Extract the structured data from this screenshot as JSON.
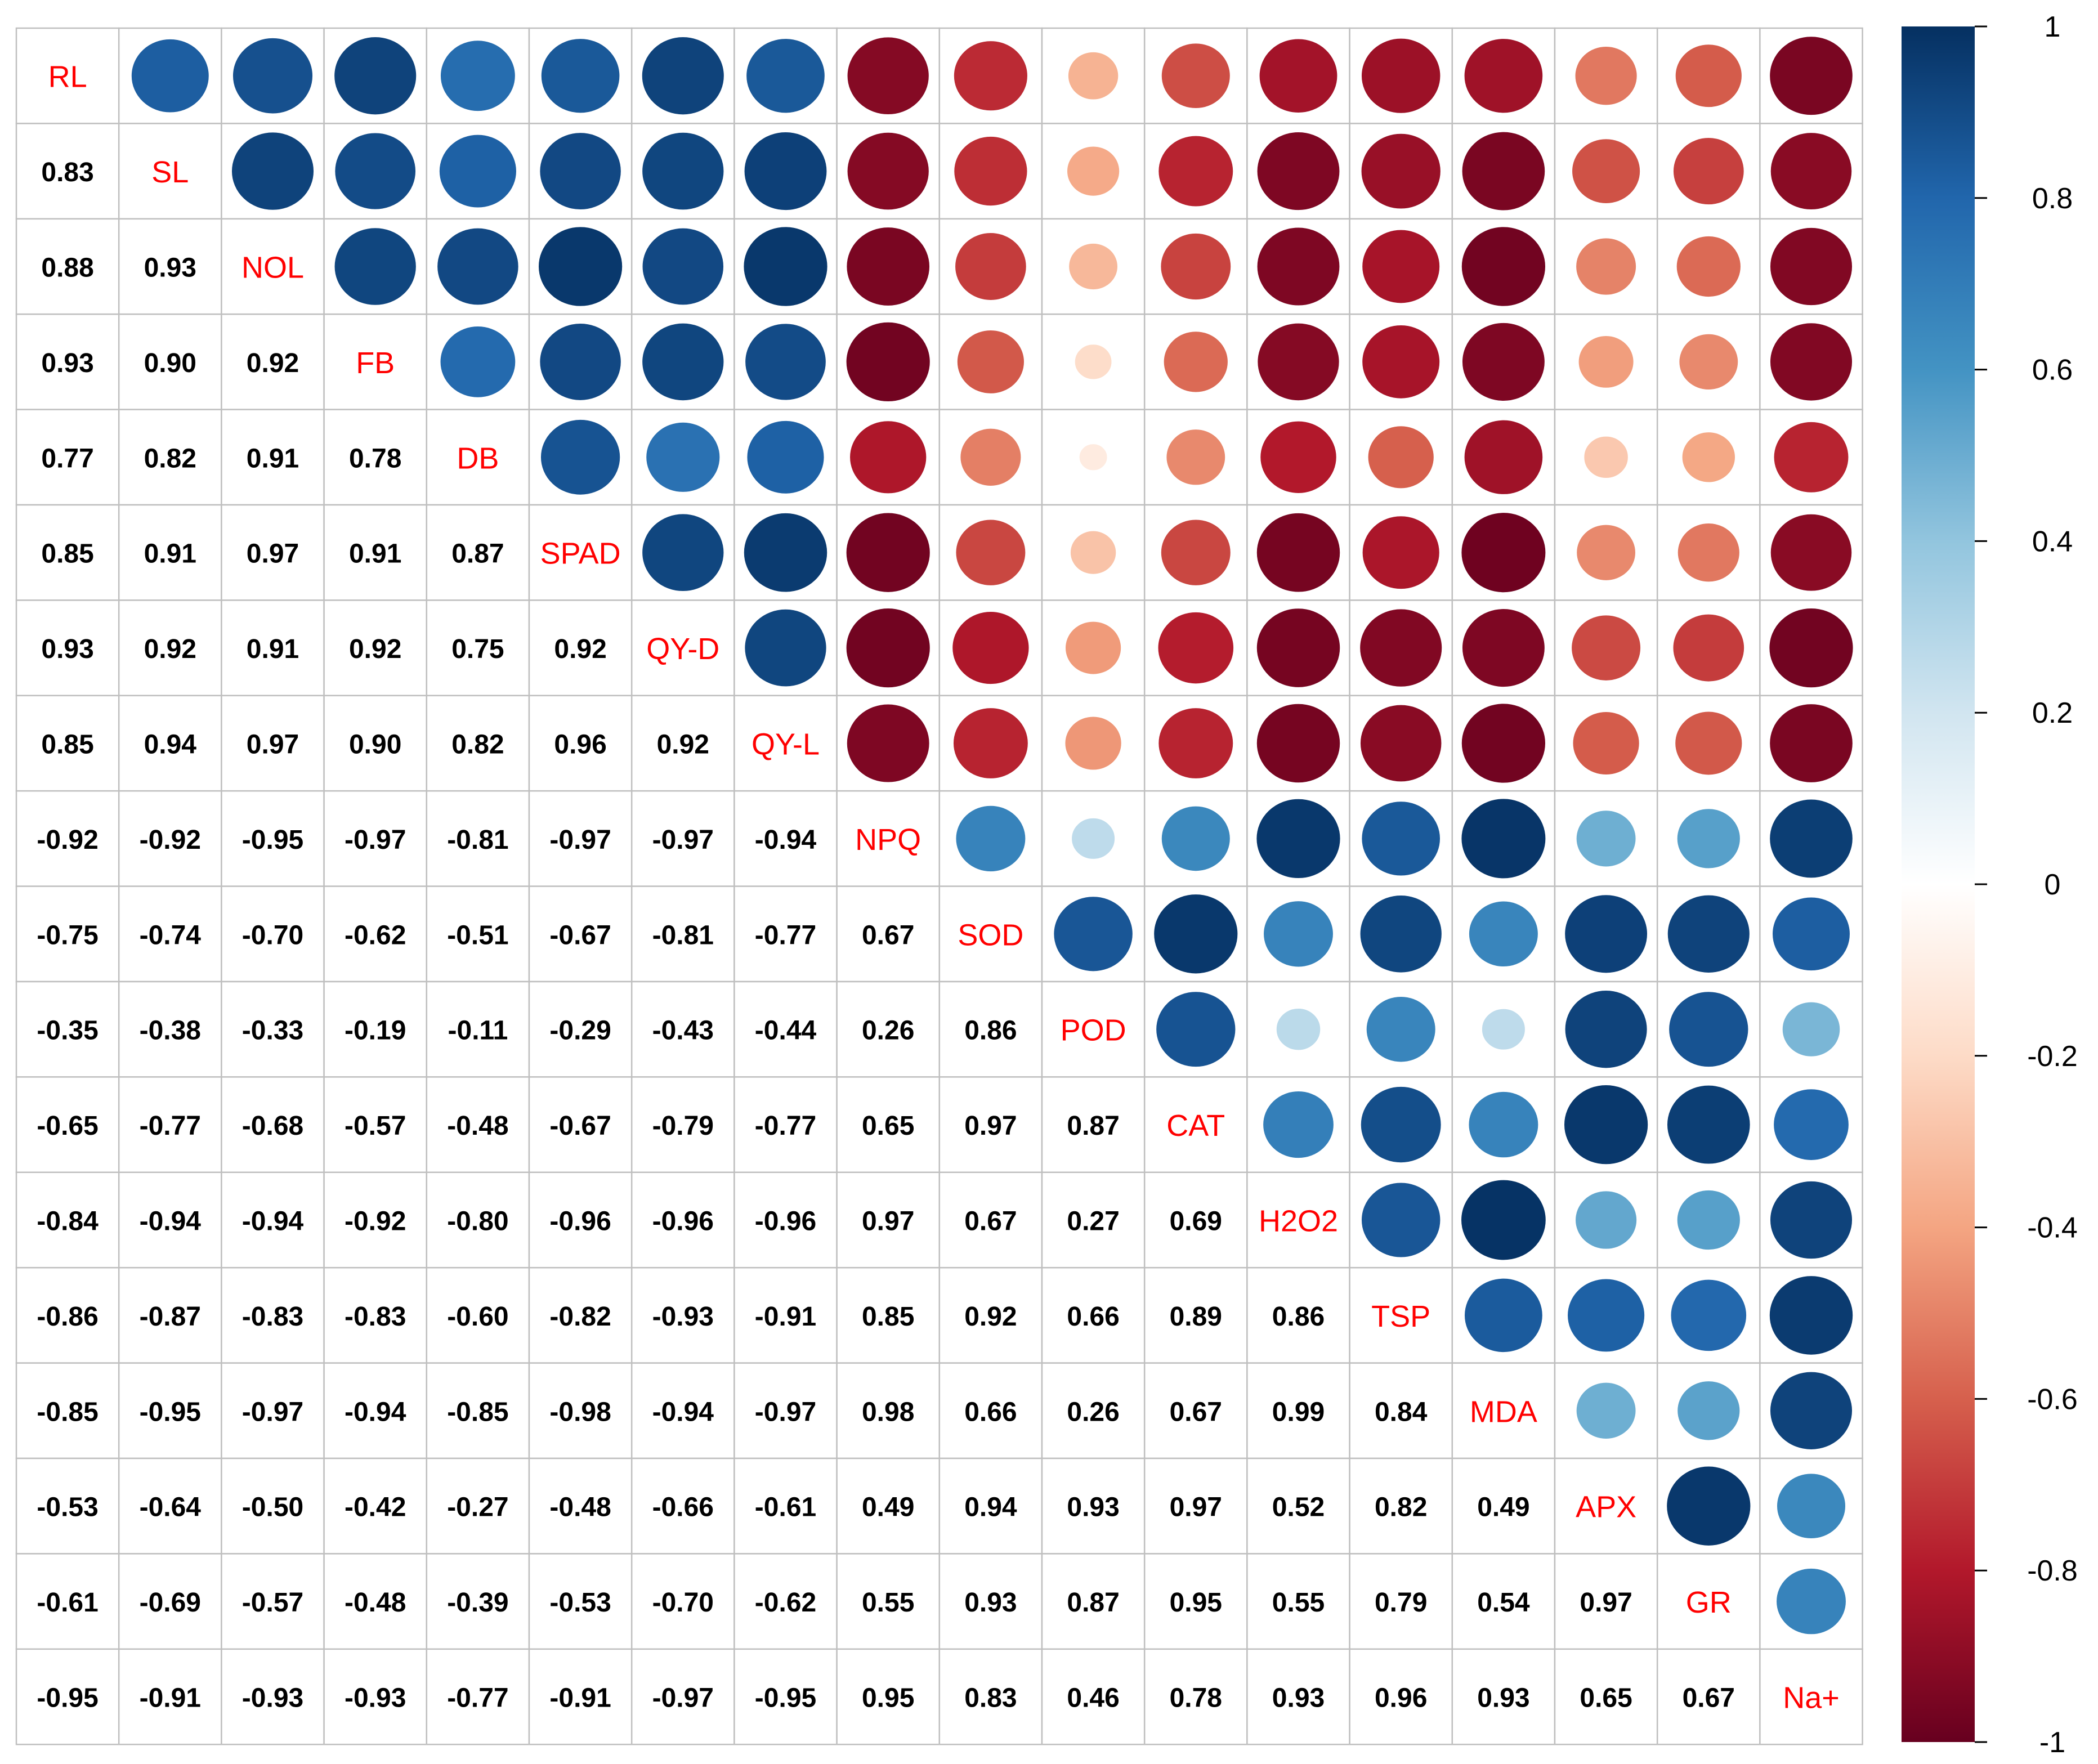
{
  "chart_data": {
    "type": "heatmap",
    "variables": [
      "RL",
      "SL",
      "NOL",
      "FB",
      "DB",
      "SPAD",
      "QY-D",
      "QY-L",
      "NPQ",
      "SOD",
      "POD",
      "CAT",
      "H2O2",
      "TSP",
      "MDA",
      "APX",
      "GR",
      "Na+"
    ],
    "matrix": [
      [
        1,
        0.83,
        0.88,
        0.93,
        0.77,
        0.85,
        0.93,
        0.85,
        -0.92,
        -0.75,
        -0.35,
        -0.65,
        -0.84,
        -0.86,
        -0.85,
        -0.53,
        -0.61,
        -0.95
      ],
      [
        0.83,
        1,
        0.93,
        0.9,
        0.82,
        0.91,
        0.92,
        0.94,
        -0.92,
        -0.74,
        -0.38,
        -0.77,
        -0.94,
        -0.87,
        -0.95,
        -0.64,
        -0.69,
        -0.91
      ],
      [
        0.88,
        0.93,
        1,
        0.92,
        0.91,
        0.97,
        0.91,
        0.97,
        -0.95,
        -0.7,
        -0.33,
        -0.68,
        -0.94,
        -0.83,
        -0.97,
        -0.5,
        -0.57,
        -0.93
      ],
      [
        0.93,
        0.9,
        0.92,
        1,
        0.78,
        0.91,
        0.92,
        0.9,
        -0.97,
        -0.62,
        -0.19,
        -0.57,
        -0.92,
        -0.83,
        -0.94,
        -0.42,
        -0.48,
        -0.93
      ],
      [
        0.77,
        0.82,
        0.91,
        0.78,
        1,
        0.87,
        0.75,
        0.82,
        -0.81,
        -0.51,
        -0.11,
        -0.48,
        -0.8,
        -0.6,
        -0.85,
        -0.27,
        -0.39,
        -0.77
      ],
      [
        0.85,
        0.91,
        0.97,
        0.91,
        0.87,
        1,
        0.92,
        0.96,
        -0.97,
        -0.67,
        -0.29,
        -0.67,
        -0.96,
        -0.82,
        -0.98,
        -0.48,
        -0.53,
        -0.91
      ],
      [
        0.93,
        0.92,
        0.91,
        0.92,
        0.75,
        0.92,
        1,
        0.92,
        -0.97,
        -0.81,
        -0.43,
        -0.79,
        -0.96,
        -0.93,
        -0.94,
        -0.66,
        -0.7,
        -0.97
      ],
      [
        0.85,
        0.94,
        0.97,
        0.9,
        0.82,
        0.96,
        0.92,
        1,
        -0.94,
        -0.77,
        -0.44,
        -0.77,
        -0.96,
        -0.91,
        -0.97,
        -0.61,
        -0.62,
        -0.95
      ],
      [
        -0.92,
        -0.92,
        -0.95,
        -0.97,
        -0.81,
        -0.97,
        -0.97,
        -0.94,
        1,
        0.67,
        0.26,
        0.65,
        0.97,
        0.85,
        0.98,
        0.49,
        0.55,
        0.95
      ],
      [
        -0.75,
        -0.74,
        -0.7,
        -0.62,
        -0.51,
        -0.67,
        -0.81,
        -0.77,
        0.67,
        1,
        0.86,
        0.97,
        0.67,
        0.92,
        0.66,
        0.94,
        0.93,
        0.83
      ],
      [
        -0.35,
        -0.38,
        -0.33,
        -0.19,
        -0.11,
        -0.29,
        -0.43,
        -0.44,
        0.26,
        0.86,
        1,
        0.87,
        0.27,
        0.66,
        0.26,
        0.93,
        0.87,
        0.46
      ],
      [
        -0.65,
        -0.77,
        -0.68,
        -0.57,
        -0.48,
        -0.67,
        -0.79,
        -0.77,
        0.65,
        0.97,
        0.87,
        1,
        0.69,
        0.89,
        0.67,
        0.97,
        0.95,
        0.78
      ],
      [
        -0.84,
        -0.94,
        -0.94,
        -0.92,
        -0.8,
        -0.96,
        -0.96,
        -0.96,
        0.97,
        0.67,
        0.27,
        0.69,
        1,
        0.86,
        0.99,
        0.52,
        0.55,
        0.93
      ],
      [
        -0.86,
        -0.87,
        -0.83,
        -0.83,
        -0.6,
        -0.82,
        -0.93,
        -0.91,
        0.85,
        0.92,
        0.66,
        0.89,
        0.86,
        1,
        0.84,
        0.82,
        0.79,
        0.96
      ],
      [
        -0.85,
        -0.95,
        -0.97,
        -0.94,
        -0.85,
        -0.98,
        -0.94,
        -0.97,
        0.98,
        0.66,
        0.26,
        0.67,
        0.99,
        0.84,
        1,
        0.49,
        0.54,
        0.93
      ],
      [
        -0.53,
        -0.64,
        -0.5,
        -0.42,
        -0.27,
        -0.48,
        -0.66,
        -0.61,
        0.49,
        0.94,
        0.93,
        0.97,
        0.52,
        0.82,
        0.49,
        1,
        0.97,
        0.65
      ],
      [
        -0.61,
        -0.69,
        -0.57,
        -0.48,
        -0.39,
        -0.53,
        -0.7,
        -0.62,
        0.55,
        0.93,
        0.87,
        0.95,
        0.55,
        0.79,
        0.54,
        0.97,
        1,
        0.67
      ],
      [
        -0.95,
        -0.91,
        -0.93,
        -0.93,
        -0.77,
        -0.91,
        -0.97,
        -0.95,
        0.95,
        0.83,
        0.46,
        0.78,
        0.93,
        0.96,
        0.93,
        0.65,
        0.67,
        1
      ]
    ],
    "lower_triangle": "numbers",
    "upper_triangle": "circles",
    "diagonal": "variable names",
    "colorbar": {
      "ticks": [
        1,
        0.8,
        0.6,
        0.4,
        0.2,
        0,
        -0.2,
        -0.4,
        -0.6,
        -0.8,
        -1
      ],
      "tick_labels": [
        "1",
        "0.8",
        "0.6",
        "0.4",
        "0.2",
        "0",
        "-0.2",
        "-0.4",
        "-0.6",
        "-0.8",
        "-1"
      ],
      "range": [
        -1,
        1
      ],
      "position": "right"
    },
    "grid": true,
    "colors": {
      "positive": "#053061",
      "negative": "#67001f",
      "zero": "#ffffff",
      "label": "#ff0000",
      "number": "#000000",
      "gridline": "#bfbfbf"
    },
    "colormap_stops": [
      "#67001f",
      "#b2182b",
      "#d6604d",
      "#f4a582",
      "#fddbc7",
      "#ffffff",
      "#d1e5f0",
      "#92c5de",
      "#4393c3",
      "#2166ac",
      "#053061"
    ]
  }
}
